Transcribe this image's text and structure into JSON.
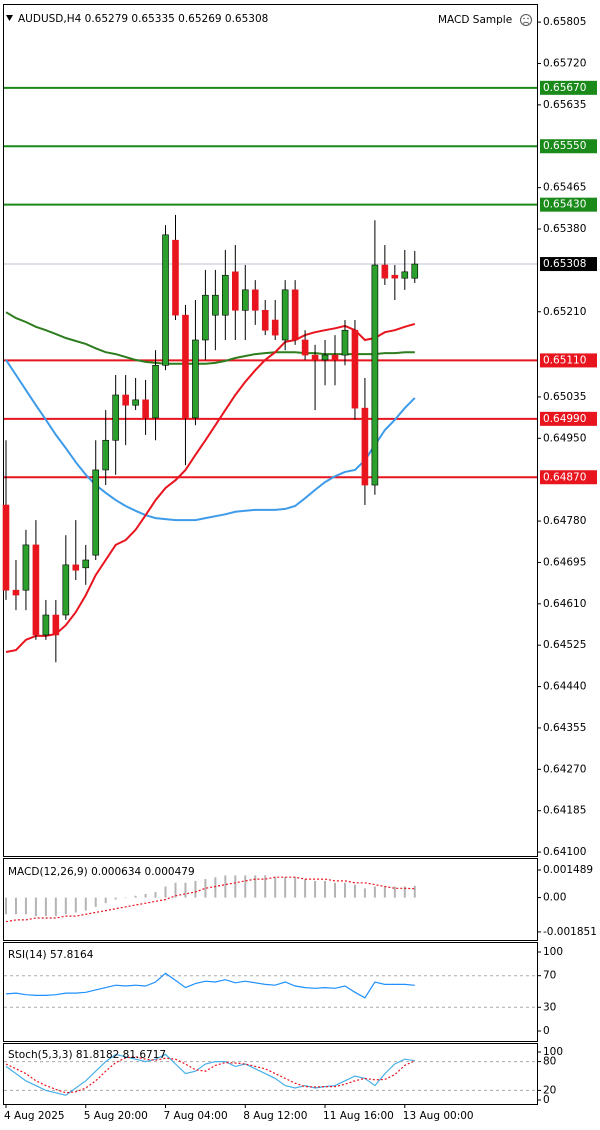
{
  "chart_data": [
    {
      "type": "candlestick",
      "title": "AUDUSD,H4  0.65279 0.65335 0.65269 0.65308",
      "expert": "MACD Sample",
      "categories": [
        "4 Aug 2025",
        null,
        null,
        null,
        null,
        null,
        null,
        null,
        "5 Aug 20:00",
        null,
        null,
        null,
        null,
        null,
        null,
        null,
        "7 Aug 04:00",
        null,
        null,
        null,
        null,
        null,
        null,
        null,
        "8 Aug 12:00",
        null,
        null,
        null,
        null,
        null,
        null,
        null,
        "11 Aug 16:00",
        null,
        null,
        null,
        null,
        null,
        null,
        null,
        "13 Aug 00:00",
        null
      ],
      "open": [
        0.64813,
        0.64638,
        0.64638,
        0.64731,
        0.64546,
        0.64587,
        0.64587,
        0.6469,
        0.64684,
        0.6471,
        0.64885,
        0.64946,
        0.65039,
        0.65018,
        0.65029,
        0.64992,
        0.651,
        0.65357,
        0.65203,
        0.64992,
        0.65152,
        0.65203,
        0.65203,
        0.65292,
        0.65213,
        0.65255,
        0.65213,
        0.65193,
        0.65152,
        0.65255,
        0.65152,
        0.65121,
        0.65111,
        0.65121,
        0.65121,
        0.65172,
        0.65012,
        0.64854,
        0.65306,
        0.65285,
        0.65279,
        0.65279
      ],
      "high": [
        0.64946,
        0.647,
        0.64762,
        0.64782,
        0.64618,
        0.64618,
        0.64751,
        0.64782,
        0.64731,
        0.64946,
        0.65008,
        0.6508,
        0.6508,
        0.65074,
        0.6507,
        0.65131,
        0.65388,
        0.65409,
        0.65224,
        0.65234,
        0.65296,
        0.65296,
        0.65337,
        0.65347,
        0.65306,
        0.65275,
        0.65234,
        0.65234,
        0.65275,
        0.65275,
        0.65172,
        0.65142,
        0.65152,
        0.65162,
        0.65193,
        0.65193,
        0.65074,
        0.65398,
        0.65347,
        0.65306,
        0.65337,
        0.65335
      ],
      "low": [
        0.64618,
        0.64597,
        0.64597,
        0.64536,
        0.64536,
        0.6449,
        0.64577,
        0.64659,
        0.64649,
        0.647,
        0.64854,
        0.64875,
        0.64936,
        0.65008,
        0.64957,
        0.64946,
        0.6509,
        0.65193,
        0.64895,
        0.64977,
        0.65111,
        0.65131,
        0.65152,
        0.65152,
        0.65152,
        0.65183,
        0.65162,
        0.65152,
        0.65131,
        0.65142,
        0.65111,
        0.65008,
        0.65059,
        0.65059,
        0.651,
        0.64988,
        0.64813,
        0.64834,
        0.65265,
        0.65234,
        0.65255,
        0.65269
      ],
      "close": [
        0.64638,
        0.64628,
        0.64731,
        0.64546,
        0.64587,
        0.64546,
        0.6469,
        0.64679,
        0.647,
        0.64885,
        0.64946,
        0.65039,
        0.65018,
        0.65029,
        0.64992,
        0.651,
        0.65368,
        0.65203,
        0.64992,
        0.65152,
        0.65244,
        0.65244,
        0.65285,
        0.65213,
        0.65255,
        0.65213,
        0.65172,
        0.65162,
        0.65255,
        0.65152,
        0.65121,
        0.65111,
        0.65121,
        0.65111,
        0.65172,
        0.65012,
        0.64854,
        0.65306,
        0.65279,
        0.65279,
        0.65292,
        0.65308
      ],
      "up_color": "#2ca02c",
      "down_color": "#e8141e",
      "overlays": [
        {
          "color": "#2e7d1e",
          "values": [
            0.65209,
            0.65197,
            0.65189,
            0.65179,
            0.65172,
            0.65164,
            0.65156,
            0.6515,
            0.65144,
            0.65135,
            0.65127,
            0.65123,
            0.65117,
            0.65111,
            0.65107,
            0.65105,
            0.65103,
            0.65103,
            0.65103,
            0.65103,
            0.65103,
            0.65105,
            0.65109,
            0.65115,
            0.65119,
            0.65123,
            0.65125,
            0.65127,
            0.65127,
            0.65127,
            0.65125,
            0.65125,
            0.65123,
            0.65123,
            0.65123,
            0.65123,
            0.65123,
            0.65123,
            0.65125,
            0.65125,
            0.65127,
            0.65127
          ]
        },
        {
          "color": "#3d9be9",
          "values": [
            0.65111,
            0.6508,
            0.65049,
            0.65018,
            0.64988,
            0.64957,
            0.6493,
            0.64901,
            0.64875,
            0.64854,
            0.64838,
            0.64823,
            0.64811,
            0.64801,
            0.64792,
            0.64786,
            0.64784,
            0.64782,
            0.64782,
            0.64782,
            0.64786,
            0.6479,
            0.64794,
            0.64799,
            0.64801,
            0.64803,
            0.64803,
            0.64803,
            0.64805,
            0.64811,
            0.64827,
            0.64844,
            0.6486,
            0.64872,
            0.64881,
            0.64885,
            0.64905,
            0.64936,
            0.64967,
            0.64988,
            0.65012,
            0.65033
          ]
        },
        {
          "color": "#e8141e",
          "values": [
            0.64511,
            0.64515,
            0.64536,
            0.64544,
            0.64544,
            0.64548,
            0.64566,
            0.64593,
            0.64628,
            0.64669,
            0.647,
            0.64731,
            0.64741,
            0.64762,
            0.64792,
            0.64823,
            0.64848,
            0.64864,
            0.64885,
            0.64916,
            0.64946,
            0.64977,
            0.65008,
            0.65039,
            0.65066,
            0.6509,
            0.65111,
            0.65127,
            0.65148,
            0.65152,
            0.65162,
            0.65168,
            0.65172,
            0.65176,
            0.65181,
            0.65172,
            0.65152,
            0.65156,
            0.65168,
            0.65172,
            0.65179,
            0.65185
          ]
        }
      ],
      "hlines": [
        {
          "value": 0.6567,
          "label": "0.65670",
          "color": "#1a8a1a"
        },
        {
          "value": 0.6555,
          "label": "0.65550",
          "color": "#1a8a1a"
        },
        {
          "value": 0.6543,
          "label": "0.65430",
          "color": "#1a8a1a"
        },
        {
          "value": 0.6511,
          "label": "0.65110",
          "color": "#e8141e"
        },
        {
          "value": 0.6499,
          "label": "0.64990",
          "color": "#e8141e"
        },
        {
          "value": 0.6487,
          "label": "0.64870",
          "color": "#e8141e"
        }
      ],
      "last_price": {
        "value": 0.65308,
        "label": "0.65308"
      },
      "ylim": [
        0.64094,
        0.65834
      ],
      "yticks": [
        0.65805,
        {
          "value": 0.6572,
          "label": "0.65720"
        },
        0.65635,
        0.65465,
        {
          "value": 0.6538,
          "label": "0.65380"
        },
        {
          "value": 0.6521,
          "label": "0.65210"
        },
        0.65035,
        {
          "value": 0.6495,
          "label": "0.64950"
        },
        {
          "value": 0.6478,
          "label": "0.64780"
        },
        0.64695,
        {
          "value": 0.6461,
          "label": "0.64610"
        },
        0.64525,
        {
          "value": 0.6444,
          "label": "0.64440"
        },
        0.64355,
        {
          "value": 0.6427,
          "label": "0.64270"
        },
        0.64185,
        {
          "value": 0.641,
          "label": "0.64100"
        }
      ]
    },
    {
      "type": "macd",
      "title": "MACD(12,26,9) 0.000634 0.000479",
      "histogram": {
        "color": "#b4b4b4",
        "values": [
          -0.0009,
          -0.0009,
          -0.0009,
          -0.001,
          -0.001,
          -0.001,
          -0.0009,
          -0.0008,
          -0.0007,
          -0.0005,
          -0.0003,
          -0.0001,
          0.0,
          0.0001,
          0.0002,
          0.0003,
          0.0006,
          0.0008,
          0.0008,
          0.0009,
          0.001,
          0.0011,
          0.0012,
          0.0012,
          0.0012,
          0.0012,
          0.0012,
          0.0011,
          0.0011,
          0.0011,
          0.001,
          0.0009,
          0.0009,
          0.0008,
          0.0008,
          0.0007,
          0.0005,
          0.0006,
          0.0006,
          0.0006,
          0.0006,
          0.000634
        ]
      },
      "lines": [
        {
          "color": "#e8141e",
          "dash": true,
          "values": [
            -0.0013,
            -0.0012,
            -0.0012,
            -0.0011,
            -0.0011,
            -0.0011,
            -0.001,
            -0.001,
            -0.0009,
            -0.0008,
            -0.0007,
            -0.0006,
            -0.0005,
            -0.0004,
            -0.0003,
            -0.0002,
            -0.0001,
            0.0001,
            0.0002,
            0.0003,
            0.0005,
            0.0006,
            0.0007,
            0.0008,
            0.0009,
            0.001,
            0.001,
            0.0011,
            0.0011,
            0.0011,
            0.001,
            0.001,
            0.001,
            0.0009,
            0.0009,
            0.0008,
            0.0008,
            0.0007,
            0.0006,
            0.0005,
            0.0005,
            0.000479
          ]
        }
      ],
      "ylim": [
        -0.002287,
        0.002029
      ],
      "yticks": [
        0.001489,
        {
          "value": 0,
          "label": "0.00"
        },
        -0.001851
      ]
    },
    {
      "type": "line",
      "title": "RSI(14) 57.8164",
      "lines": [
        {
          "color": "#1e90ff",
          "dash": false,
          "values": [
            47,
            48,
            46,
            45,
            45,
            46,
            48,
            48,
            49,
            52,
            55,
            58,
            57,
            58,
            57,
            62,
            73,
            64,
            55,
            60,
            63,
            62,
            65,
            61,
            63,
            61,
            59,
            58,
            62,
            57,
            55,
            54,
            55,
            54,
            57,
            49,
            42,
            62,
            59,
            59,
            59,
            57.8164
          ]
        }
      ],
      "levels": [
        70,
        30
      ],
      "ylim": [
        -11.4,
        111.4
      ],
      "yticks": [
        100,
        70,
        30,
        0
      ]
    },
    {
      "type": "line",
      "title": "Stoch(5,3,3) 81.8182 81.6717",
      "lines": [
        {
          "color": "#48b0e8",
          "dash": false,
          "values": [
            70,
            55,
            40,
            30,
            20,
            15,
            10,
            25,
            40,
            60,
            80,
            95,
            90,
            85,
            80,
            85,
            95,
            75,
            55,
            60,
            75,
            80,
            80,
            70,
            75,
            65,
            55,
            45,
            30,
            25,
            30,
            25,
            28,
            30,
            40,
            50,
            45,
            30,
            55,
            75,
            85,
            81.8182
          ]
        },
        {
          "color": "#e8141e",
          "dash": true,
          "values": [
            75,
            65,
            55,
            40,
            30,
            22,
            15,
            17,
            25,
            40,
            60,
            78,
            88,
            90,
            85,
            83,
            87,
            85,
            75,
            63,
            60,
            72,
            78,
            77,
            75,
            70,
            65,
            55,
            45,
            35,
            28,
            27,
            28,
            28,
            33,
            40,
            45,
            42,
            43,
            53,
            72,
            81.6717
          ]
        }
      ],
      "levels": [
        80,
        20
      ],
      "ylim": [
        -6.25,
        118.75
      ],
      "yticks": [
        100,
        80,
        20,
        0
      ]
    }
  ]
}
